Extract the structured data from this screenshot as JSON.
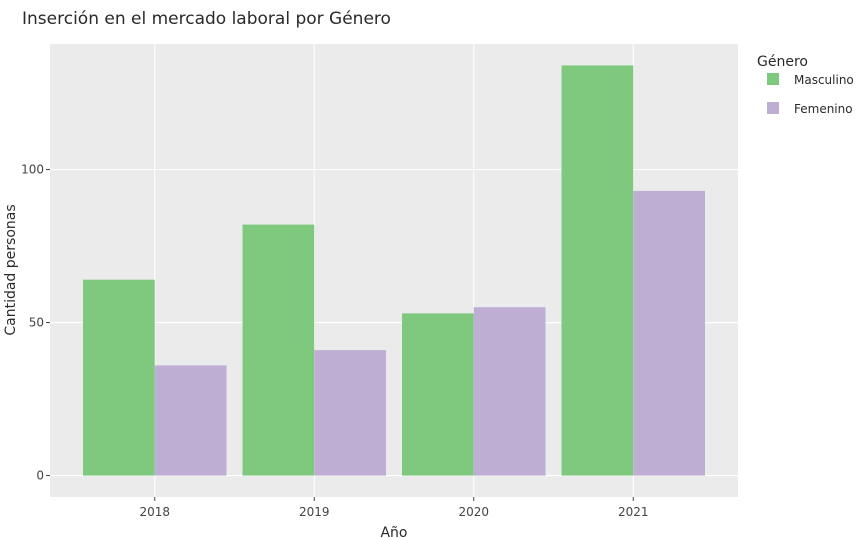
{
  "colors": {
    "panel_background": "#EBEBEB",
    "grid": "#FFFFFF",
    "masculino": "#7FC97F",
    "femenino": "#BEAED4"
  },
  "chart_data": {
    "type": "bar",
    "title": "Inserción en el mercado laboral por Género",
    "xlabel": "Año",
    "ylabel": "Cantidad personas",
    "categories": [
      "2018",
      "2019",
      "2020",
      "2021"
    ],
    "series": [
      {
        "name": "Masculino",
        "color": "#7FC97F",
        "values": [
          64,
          82,
          53,
          134
        ]
      },
      {
        "name": "Femenino",
        "color": "#BEAED4",
        "values": [
          36,
          41,
          55,
          93
        ]
      }
    ],
    "ylim": [
      -7,
      141
    ],
    "yticks": [
      0,
      50,
      100
    ],
    "grid": true,
    "legend": {
      "title": "Género",
      "position": "right"
    }
  }
}
